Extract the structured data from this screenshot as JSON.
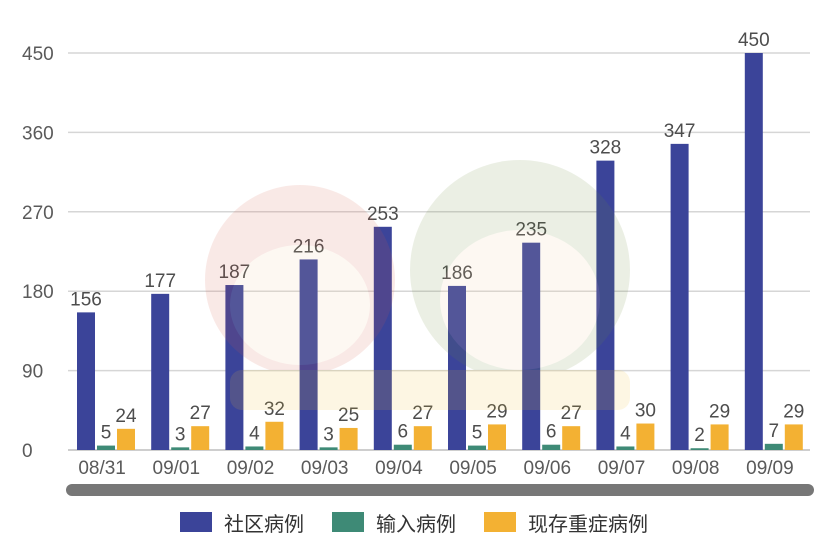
{
  "chart_data": {
    "type": "bar",
    "categories": [
      "08/31",
      "09/01",
      "09/02",
      "09/03",
      "09/04",
      "09/05",
      "09/06",
      "09/07",
      "09/08",
      "09/09"
    ],
    "series": [
      {
        "name": "社区病例",
        "color": "#3b4499",
        "values": [
          156,
          177,
          187,
          216,
          253,
          186,
          235,
          328,
          347,
          450
        ]
      },
      {
        "name": "输入病例",
        "color": "#3e8a76",
        "values": [
          5,
          3,
          4,
          3,
          6,
          5,
          6,
          4,
          2,
          7
        ]
      },
      {
        "name": "现存重症病例",
        "color": "#f3b133",
        "values": [
          24,
          27,
          32,
          25,
          27,
          29,
          27,
          30,
          29,
          29
        ]
      }
    ],
    "yticks": [
      0,
      90,
      180,
      270,
      360,
      450
    ],
    "ylim": [
      0,
      450
    ],
    "grid": true,
    "legend_position": "bottom"
  }
}
